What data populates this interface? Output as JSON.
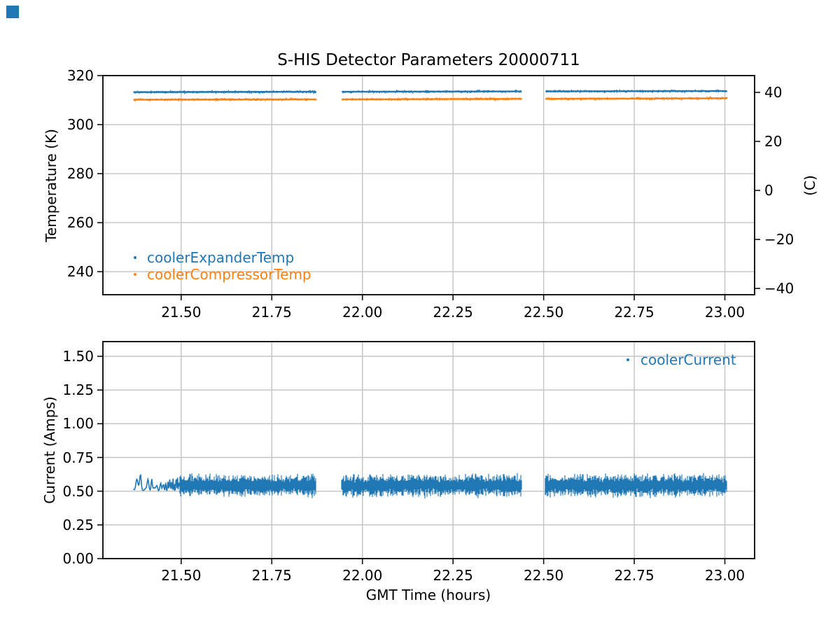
{
  "figure": {
    "title": "S-HIS Detector Parameters 20000711",
    "corner_square_color": "#1f77b4",
    "background": "#ffffff"
  },
  "colors": {
    "series_blue": "#1f77b4",
    "series_orange": "#ff7f0e",
    "grid": "#c3c3c3",
    "spine": "#000000",
    "text": "#000000"
  },
  "chart_data": [
    {
      "type": "scatter",
      "title": "S-HIS Detector Parameters 20000711",
      "ylabel_left": "Temperature (K)",
      "ylabel_right": "(C)",
      "xlabel": "",
      "grid": true,
      "xlim": [
        21.284,
        23.082
      ],
      "ylim_left": [
        230.6,
        320
      ],
      "right_axis_relation": "C = K - 273.15",
      "xticks": [
        21.5,
        21.75,
        22.0,
        22.25,
        22.5,
        22.75,
        23.0
      ],
      "xtick_labels": [
        "21.50",
        "21.75",
        "22.00",
        "22.25",
        "22.50",
        "22.75",
        "23.00"
      ],
      "yticks_left": [
        240,
        260,
        280,
        300,
        320
      ],
      "ytick_left_labels": [
        "240",
        "260",
        "280",
        "300",
        "320"
      ],
      "yticks_right": [
        40,
        20,
        0,
        -20,
        -40
      ],
      "ytick_right_labels": [
        "40",
        "20",
        "0",
        "−20",
        "−40"
      ],
      "legend_loc": "lower left",
      "legend": [
        {
          "label": "coolerExpanderTemp",
          "color": "#1f77b4"
        },
        {
          "label": "coolerCompressorTemp",
          "color": "#ff7f0e"
        }
      ],
      "series": [
        {
          "name": "coolerExpanderTemp",
          "color": "#1f77b4",
          "marker": "pixel",
          "units": "K",
          "segments": [
            {
              "x": [
                21.368,
                21.872
              ],
              "y": [
                313.25,
                313.4
              ]
            },
            {
              "x": [
                21.943,
                22.438
              ],
              "y": [
                313.4,
                313.55
              ]
            },
            {
              "x": [
                22.505,
                23.005
              ],
              "y": [
                313.55,
                313.7
              ]
            }
          ]
        },
        {
          "name": "coolerCompressorTemp",
          "color": "#ff7f0e",
          "marker": "pixel",
          "units": "K",
          "segments": [
            {
              "x": [
                21.368,
                21.872
              ],
              "y": [
                310.15,
                310.3
              ]
            },
            {
              "x": [
                21.943,
                22.438
              ],
              "y": [
                310.3,
                310.5
              ]
            },
            {
              "x": [
                22.505,
                23.005
              ],
              "y": [
                310.5,
                310.75
              ]
            }
          ]
        }
      ]
    },
    {
      "type": "scatter",
      "xlabel": "GMT Time (hours)",
      "ylabel_left": "Current (Amps)",
      "grid": true,
      "xlim": [
        21.284,
        23.082
      ],
      "ylim_left": [
        0,
        1.609
      ],
      "xticks": [
        21.5,
        21.75,
        22.0,
        22.25,
        22.5,
        22.75,
        23.0
      ],
      "xtick_labels": [
        "21.50",
        "21.75",
        "22.00",
        "22.25",
        "22.50",
        "22.75",
        "23.00"
      ],
      "yticks_left": [
        0.0,
        0.25,
        0.5,
        0.75,
        1.0,
        1.25,
        1.5
      ],
      "ytick_left_labels": [
        "0.00",
        "0.25",
        "0.50",
        "0.75",
        "1.00",
        "1.25",
        "1.50"
      ],
      "legend_loc": "upper right",
      "legend": [
        {
          "label": "coolerCurrent",
          "color": "#1f77b4"
        }
      ],
      "series": [
        {
          "name": "coolerCurrent",
          "color": "#1f77b4",
          "marker": "pixel",
          "units": "Amps",
          "band_mean": 0.545,
          "band_min": 0.46,
          "band_max": 0.625,
          "segments": [
            {
              "x": [
                21.497,
                21.872
              ]
            },
            {
              "x": [
                21.943,
                22.438
              ]
            },
            {
              "x": [
                22.505,
                23.005
              ]
            }
          ],
          "startup_wave": {
            "x": [
              21.368,
              21.503
            ],
            "y_base": 0.515,
            "amplitude": 0.055
          }
        }
      ]
    }
  ]
}
